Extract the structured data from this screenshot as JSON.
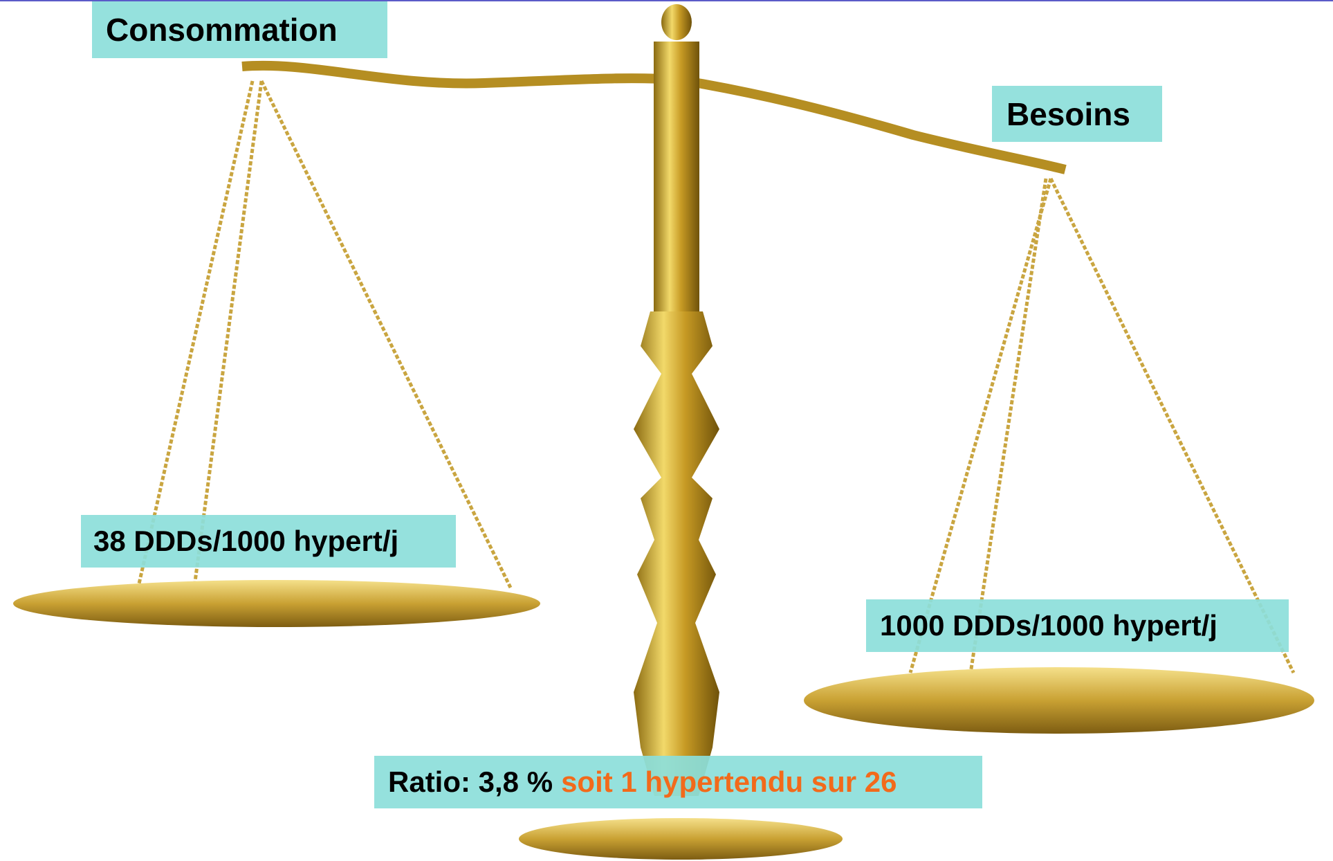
{
  "slide": {
    "labels": {
      "consommation": "Consommation",
      "besoins": "Besoins",
      "left_value": "38 DDDs/1000 hypert/j",
      "right_value": "1000 DDDs/1000 hypert/j",
      "ratio": "Ratio: 3,8 %",
      "ratio_note": "soit 1 hypertendu sur 26"
    }
  }
}
